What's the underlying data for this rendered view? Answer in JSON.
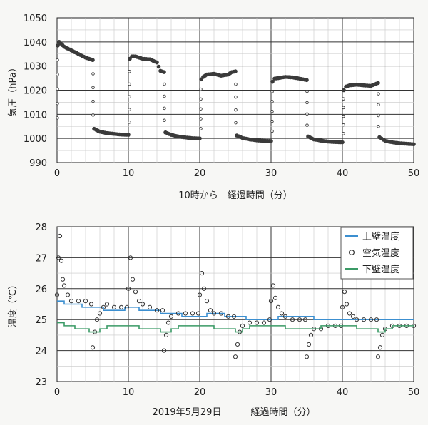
{
  "chart_data": [
    {
      "type": "scatter",
      "title": "",
      "xlabel": "10時から　経過時間（分）",
      "ylabel": "気圧（hPa）",
      "xlim": [
        0,
        50
      ],
      "ylim": [
        990,
        1050
      ],
      "xticks": [
        "0",
        "10",
        "20",
        "30",
        "40",
        "50"
      ],
      "yticks": [
        "990",
        "1000",
        "1010",
        "1020",
        "1030",
        "1040",
        "1050"
      ],
      "grid": true,
      "series": [
        {
          "marker": "filled-circle",
          "color": "#3a3a3a",
          "cycles": [
            {
              "high": [
                [
                  0.1,
                  1038.5
                ],
                [
                  0.3,
                  1040.0
                ],
                [
                  1,
                  1038.0
                ],
                [
                  2,
                  1036.5
                ],
                [
                  3,
                  1035.0
                ],
                [
                  4,
                  1033.5
                ],
                [
                  5,
                  1032.5
                ]
              ],
              "low": [
                [
                  5.2,
                  1004.0
                ],
                [
                  6,
                  1002.8
                ],
                [
                  7,
                  1002.2
                ],
                [
                  8,
                  1001.9
                ],
                [
                  9,
                  1001.6
                ],
                [
                  10,
                  1001.5
                ]
              ]
            },
            {
              "high": [
                [
                  10.2,
                  1033.0
                ],
                [
                  10.5,
                  1034.0
                ],
                [
                  11,
                  1034.0
                ],
                [
                  12,
                  1033.0
                ],
                [
                  13,
                  1032.8
                ],
                [
                  14,
                  1031.5
                ],
                [
                  14.5,
                  1028.0
                ],
                [
                  15,
                  1027.5
                ]
              ],
              "low": [
                [
                  15.2,
                  1002.5
                ],
                [
                  16,
                  1001.5
                ],
                [
                  17,
                  1000.8
                ],
                [
                  18,
                  1000.4
                ],
                [
                  19,
                  1000.1
                ],
                [
                  20,
                  1000.0
                ]
              ]
            },
            {
              "high": [
                [
                  20.2,
                  1024.5
                ],
                [
                  20.5,
                  1025.5
                ],
                [
                  21,
                  1026.5
                ],
                [
                  22,
                  1026.8
                ],
                [
                  23,
                  1026.0
                ],
                [
                  24,
                  1026.5
                ],
                [
                  24.5,
                  1027.5
                ],
                [
                  25,
                  1027.8
                ]
              ],
              "low": [
                [
                  25.2,
                  1001.2
                ],
                [
                  26,
                  1000.2
                ],
                [
                  27,
                  999.6
                ],
                [
                  28,
                  999.2
                ],
                [
                  29,
                  999.0
                ],
                [
                  30,
                  998.9
                ]
              ]
            },
            {
              "high": [
                [
                  30.2,
                  1023.5
                ],
                [
                  30.5,
                  1024.8
                ],
                [
                  31,
                  1025.0
                ],
                [
                  32,
                  1025.5
                ],
                [
                  33,
                  1025.3
                ],
                [
                  34,
                  1024.8
                ],
                [
                  35,
                  1024.2
                ]
              ],
              "low": [
                [
                  35.2,
                  1000.8
                ],
                [
                  36,
                  999.6
                ],
                [
                  37,
                  999.1
                ],
                [
                  38,
                  998.7
                ],
                [
                  39,
                  998.5
                ],
                [
                  40,
                  998.4
                ]
              ]
            },
            {
              "high": [
                [
                  40.2,
                  1020.0
                ],
                [
                  40.5,
                  1021.5
                ],
                [
                  41,
                  1022.0
                ],
                [
                  42,
                  1022.3
                ],
                [
                  43,
                  1022.0
                ],
                [
                  44,
                  1021.8
                ],
                [
                  45,
                  1023.0
                ]
              ],
              "low": [
                [
                  45.2,
                  1000.5
                ],
                [
                  46,
                  999.0
                ],
                [
                  47,
                  998.4
                ],
                [
                  48,
                  998.0
                ],
                [
                  49,
                  997.8
                ],
                [
                  50,
                  997.6
                ]
              ]
            }
          ]
        }
      ]
    },
    {
      "type": "line",
      "title": "",
      "xlabel": "経過時間（分）",
      "date_label": "2019年5月29日",
      "ylabel": "温度（℃）",
      "xlim": [
        0,
        50
      ],
      "ylim": [
        23,
        28
      ],
      "xticks": [
        "0",
        "10",
        "20",
        "30",
        "40",
        "50"
      ],
      "yticks": [
        "23",
        "24",
        "25",
        "26",
        "27",
        "28"
      ],
      "grid": true,
      "legend": "top-right",
      "series": [
        {
          "name": "上壁温度",
          "style": "line",
          "color": "#3c8fd0",
          "points": [
            [
              0,
              25.6
            ],
            [
              1,
              25.5
            ],
            [
              3,
              25.5
            ],
            [
              3.5,
              25.4
            ],
            [
              6,
              25.4
            ],
            [
              6.5,
              25.3
            ],
            [
              9,
              25.3
            ],
            [
              9.5,
              25.4
            ],
            [
              11,
              25.4
            ],
            [
              11.5,
              25.3
            ],
            [
              14,
              25.3
            ],
            [
              14.5,
              25.2
            ],
            [
              17,
              25.2
            ],
            [
              17.5,
              25.1
            ],
            [
              20,
              25.1
            ],
            [
              21,
              25.2
            ],
            [
              23,
              25.2
            ],
            [
              23.5,
              25.1
            ],
            [
              26,
              25.1
            ],
            [
              26.5,
              25.0
            ],
            [
              29,
              25.0
            ],
            [
              30,
              25.0
            ],
            [
              31,
              25.1
            ],
            [
              35,
              25.1
            ],
            [
              36,
              25.0
            ],
            [
              39,
              25.0
            ],
            [
              40,
              25.0
            ],
            [
              41,
              25.0
            ],
            [
              45,
              25.0
            ],
            [
              46,
              25.0
            ],
            [
              50,
              25.0
            ]
          ]
        },
        {
          "name": "空気温度",
          "style": "open-circle",
          "color": "#333333",
          "points": [
            [
              0,
              25.8
            ],
            [
              0.2,
              27.0
            ],
            [
              0.4,
              27.7
            ],
            [
              0.6,
              26.9
            ],
            [
              0.8,
              26.3
            ],
            [
              1,
              26.1
            ],
            [
              1.5,
              25.8
            ],
            [
              2,
              25.6
            ],
            [
              3,
              25.6
            ],
            [
              4,
              25.6
            ],
            [
              4.8,
              25.5
            ],
            [
              5,
              24.1
            ],
            [
              5.3,
              24.6
            ],
            [
              5.6,
              25.0
            ],
            [
              6,
              25.2
            ],
            [
              6.5,
              25.4
            ],
            [
              7,
              25.5
            ],
            [
              8,
              25.4
            ],
            [
              9,
              25.4
            ],
            [
              9.8,
              25.4
            ],
            [
              10,
              26.0
            ],
            [
              10.3,
              27.0
            ],
            [
              10.6,
              26.3
            ],
            [
              11,
              25.9
            ],
            [
              11.5,
              25.6
            ],
            [
              12,
              25.5
            ],
            [
              13,
              25.4
            ],
            [
              14,
              25.3
            ],
            [
              14.8,
              25.3
            ],
            [
              15,
              24.0
            ],
            [
              15.3,
              24.5
            ],
            [
              15.6,
              24.9
            ],
            [
              16,
              25.1
            ],
            [
              17,
              25.2
            ],
            [
              18,
              25.2
            ],
            [
              19,
              25.2
            ],
            [
              19.8,
              25.2
            ],
            [
              20,
              25.8
            ],
            [
              20.3,
              26.5
            ],
            [
              20.6,
              26.0
            ],
            [
              21,
              25.6
            ],
            [
              21.5,
              25.3
            ],
            [
              22,
              25.2
            ],
            [
              23,
              25.2
            ],
            [
              24,
              25.1
            ],
            [
              24.8,
              25.1
            ],
            [
              25,
              23.8
            ],
            [
              25.3,
              24.2
            ],
            [
              25.6,
              24.6
            ],
            [
              26,
              24.8
            ],
            [
              27,
              24.9
            ],
            [
              28,
              24.9
            ],
            [
              29,
              24.9
            ],
            [
              29.8,
              25.0
            ],
            [
              30,
              25.6
            ],
            [
              30.3,
              26.1
            ],
            [
              30.6,
              25.7
            ],
            [
              31,
              25.4
            ],
            [
              31.5,
              25.2
            ],
            [
              32,
              25.1
            ],
            [
              33,
              25.0
            ],
            [
              34,
              25.0
            ],
            [
              34.8,
              25.0
            ],
            [
              35,
              23.8
            ],
            [
              35.3,
              24.2
            ],
            [
              35.6,
              24.5
            ],
            [
              36,
              24.7
            ],
            [
              37,
              24.7
            ],
            [
              38,
              24.8
            ],
            [
              39,
              24.8
            ],
            [
              39.8,
              24.8
            ],
            [
              40,
              25.4
            ],
            [
              40.3,
              25.9
            ],
            [
              40.6,
              25.5
            ],
            [
              41,
              25.2
            ],
            [
              41.5,
              25.1
            ],
            [
              42,
              25.0
            ],
            [
              43,
              25.0
            ],
            [
              44,
              25.0
            ],
            [
              44.8,
              25.0
            ],
            [
              45,
              23.8
            ],
            [
              45.3,
              24.1
            ],
            [
              45.6,
              24.5
            ],
            [
              46,
              24.7
            ],
            [
              47,
              24.8
            ],
            [
              48,
              24.8
            ],
            [
              49,
              24.8
            ],
            [
              50,
              24.8
            ]
          ]
        },
        {
          "name": "下壁温度",
          "style": "line",
          "color": "#3a9a66",
          "points": [
            [
              0,
              24.9
            ],
            [
              1,
              24.8
            ],
            [
              2,
              24.8
            ],
            [
              2.5,
              24.7
            ],
            [
              4,
              24.7
            ],
            [
              4.5,
              24.6
            ],
            [
              5,
              24.6
            ],
            [
              6,
              24.7
            ],
            [
              7,
              24.8
            ],
            [
              10,
              24.8
            ],
            [
              11,
              24.8
            ],
            [
              11.5,
              24.7
            ],
            [
              14,
              24.7
            ],
            [
              14.5,
              24.6
            ],
            [
              15,
              24.6
            ],
            [
              16,
              24.7
            ],
            [
              17,
              24.8
            ],
            [
              20,
              24.8
            ],
            [
              21,
              24.8
            ],
            [
              22,
              24.7
            ],
            [
              24,
              24.7
            ],
            [
              25,
              24.6
            ],
            [
              26,
              24.7
            ],
            [
              27,
              24.8
            ],
            [
              30,
              24.8
            ],
            [
              31,
              24.8
            ],
            [
              32,
              24.7
            ],
            [
              35,
              24.7
            ],
            [
              36,
              24.7
            ],
            [
              37,
              24.8
            ],
            [
              40,
              24.8
            ],
            [
              41,
              24.8
            ],
            [
              42,
              24.7
            ],
            [
              44,
              24.7
            ],
            [
              45,
              24.6
            ],
            [
              46,
              24.7
            ],
            [
              47,
              24.8
            ],
            [
              50,
              24.8
            ]
          ]
        }
      ]
    }
  ]
}
